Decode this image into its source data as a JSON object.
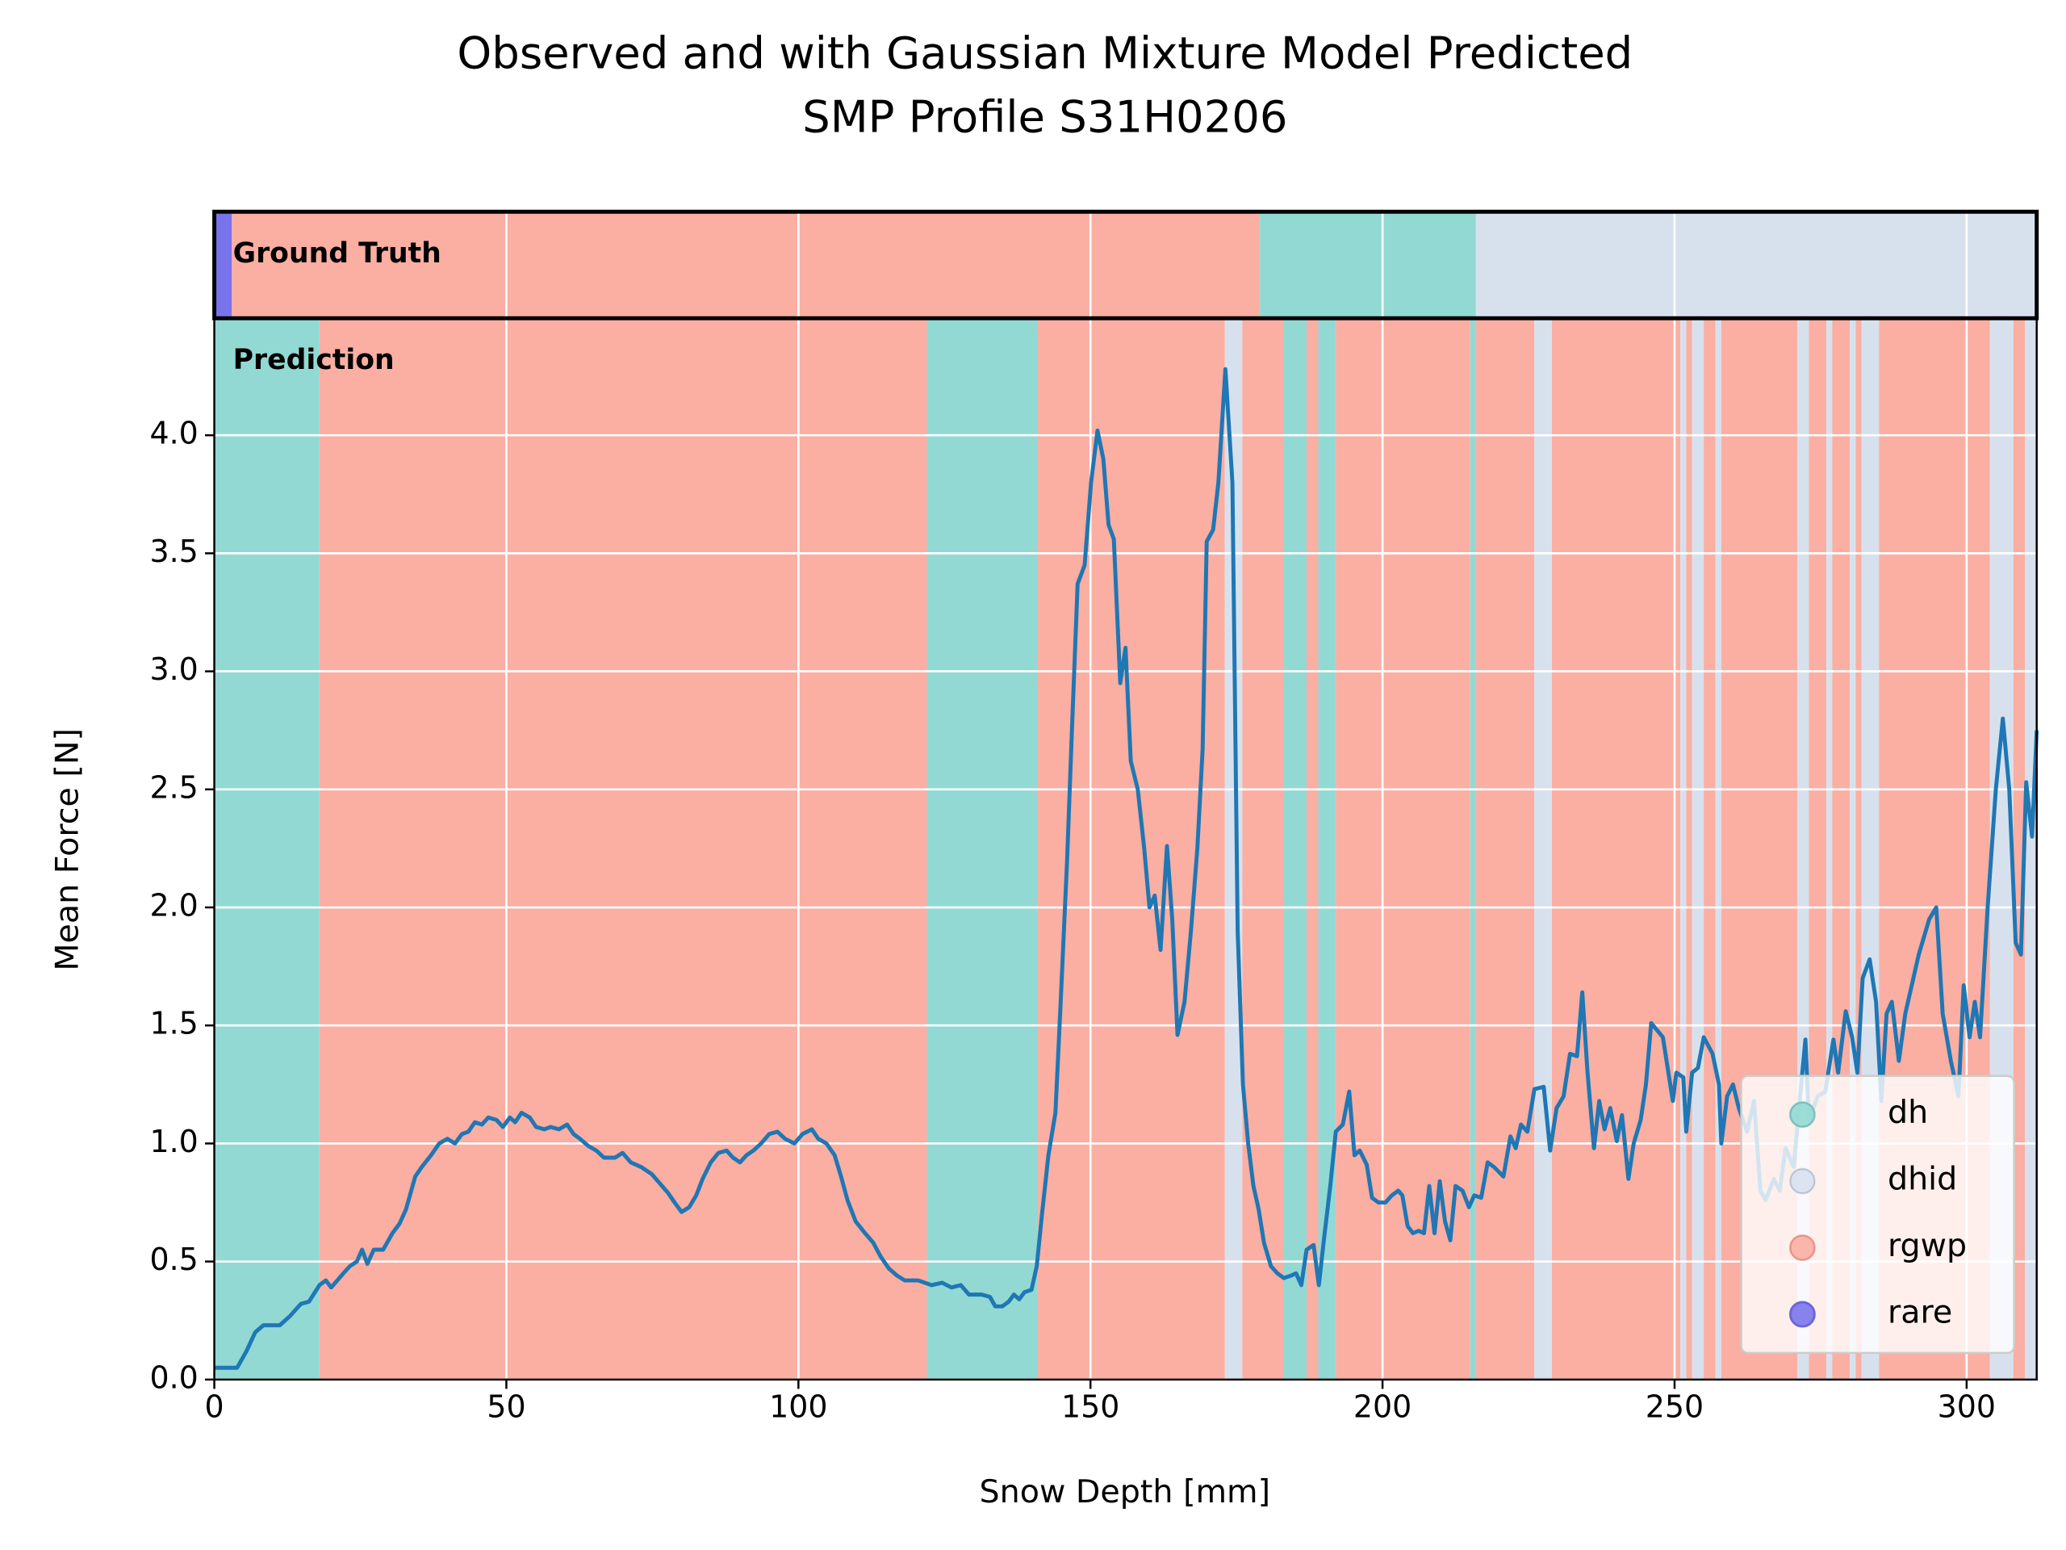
{
  "chart_data": {
    "type": "line",
    "title": [
      "Observed and with Gaussian Mixture Model Predicted",
      "SMP Profile S31H0206"
    ],
    "x_label": "Snow Depth [mm]",
    "y_label": "Mean Force [N]",
    "x": [
      0,
      3.9,
      5.5,
      7,
      8.4,
      11.2,
      13,
      14.8,
      16.2,
      18,
      19.1,
      20,
      22.1,
      23.2,
      24.4,
      25.3,
      26.2,
      27.3,
      28.9,
      30.5,
      31.7,
      32.8,
      34.4,
      35.5,
      37.1,
      38.5,
      39.9,
      41.2,
      42.4,
      43.5,
      44.6,
      45.8,
      46.9,
      48.3,
      49.4,
      50.6,
      51.5,
      52.6,
      54,
      55.1,
      56.5,
      57.6,
      59,
      60.4,
      61.5,
      62.6,
      64,
      65.4,
      66.7,
      68.6,
      69.9,
      71.3,
      73.1,
      74.9,
      76.3,
      77.7,
      78.8,
      80,
      81.3,
      82.5,
      83.6,
      85,
      86.3,
      87.7,
      88.8,
      90,
      91.1,
      92.3,
      93.6,
      95,
      96.4,
      97.7,
      99.3,
      100.7,
      102.3,
      103.4,
      104.8,
      106.2,
      107.3,
      108.4,
      109.8,
      111.4,
      112.8,
      114.1,
      115.5,
      116.9,
      118.2,
      120.5,
      122.8,
      124.6,
      126.2,
      127.8,
      129.2,
      131.4,
      132.8,
      133.7,
      134.9,
      136,
      136.9,
      137.8,
      138.7,
      139.9,
      140.8,
      141.7,
      142.8,
      144,
      144.9,
      146,
      146.9,
      147.8,
      149,
      150.1,
      151.2,
      152.2,
      153.1,
      154,
      155.1,
      156,
      156.9,
      158.1,
      159.2,
      160.1,
      161,
      162,
      163.1,
      164,
      164.9,
      166.1,
      167.2,
      168.3,
      169.2,
      169.9,
      171,
      171.9,
      173.1,
      174.3,
      175.2,
      176.1,
      177,
      177.9,
      178.8,
      179.7,
      180.9,
      182,
      183.1,
      184.3,
      185.2,
      186.1,
      187,
      188.2,
      189.1,
      190,
      191.1,
      192,
      193.2,
      194.3,
      195.2,
      196.1,
      197.3,
      198.2,
      199.3,
      200.5,
      201.6,
      202.7,
      203.4,
      204.3,
      205.2,
      206.2,
      207.1,
      208,
      208.9,
      209.8,
      210.7,
      211.6,
      212.5,
      213.7,
      214.8,
      215.7,
      216.9,
      218,
      219.1,
      220.7,
      221.9,
      222.8,
      223.7,
      224.8,
      226,
      227.6,
      228.7,
      229.8,
      231,
      232.1,
      233.3,
      234.2,
      235.1,
      236.2,
      237.1,
      238,
      239,
      240.1,
      241,
      242.1,
      243,
      244.2,
      245.1,
      246,
      248,
      249.7,
      250.3,
      251.5,
      252,
      253,
      254,
      255,
      256.5,
      257.6,
      258,
      259,
      260,
      261,
      262.4,
      263.6,
      264.7,
      265.6,
      267,
      268,
      269,
      270.4,
      271.3,
      272.4,
      273,
      274.5,
      275.8,
      277.2,
      278,
      279.3,
      280.4,
      281.3,
      282.2,
      283.4,
      284.5,
      285.4,
      286.3,
      287.2,
      288.4,
      289.5,
      290.7,
      291.8,
      293.6,
      294.8,
      295.9,
      297.3,
      298.6,
      299.5,
      300.5,
      301.4,
      302.3,
      303.6,
      305,
      306.2,
      307.3,
      308.4,
      309.3,
      310.2,
      311.2,
      312
    ],
    "series": [
      {
        "color": "#1f77b4",
        "values": [
          0.05,
          0.05,
          0.12,
          0.2,
          0.23,
          0.23,
          0.27,
          0.32,
          0.33,
          0.4,
          0.42,
          0.39,
          0.45,
          0.48,
          0.5,
          0.55,
          0.49,
          0.55,
          0.55,
          0.62,
          0.66,
          0.72,
          0.86,
          0.9,
          0.95,
          1.0,
          1.02,
          1.0,
          1.04,
          1.05,
          1.09,
          1.08,
          1.11,
          1.1,
          1.07,
          1.11,
          1.09,
          1.13,
          1.11,
          1.07,
          1.06,
          1.07,
          1.06,
          1.08,
          1.04,
          1.02,
          0.99,
          0.97,
          0.94,
          0.94,
          0.96,
          0.92,
          0.9,
          0.87,
          0.83,
          0.79,
          0.75,
          0.71,
          0.73,
          0.78,
          0.85,
          0.92,
          0.96,
          0.97,
          0.94,
          0.92,
          0.95,
          0.97,
          1.0,
          1.04,
          1.05,
          1.02,
          1.0,
          1.04,
          1.06,
          1.02,
          1.0,
          0.95,
          0.86,
          0.76,
          0.67,
          0.62,
          0.58,
          0.52,
          0.47,
          0.44,
          0.42,
          0.42,
          0.4,
          0.41,
          0.39,
          0.4,
          0.36,
          0.36,
          0.35,
          0.31,
          0.31,
          0.33,
          0.36,
          0.34,
          0.37,
          0.38,
          0.48,
          0.7,
          0.95,
          1.13,
          1.6,
          2.2,
          2.8,
          3.37,
          3.45,
          3.8,
          4.02,
          3.9,
          3.62,
          3.56,
          2.95,
          3.1,
          2.62,
          2.5,
          2.25,
          2.0,
          2.05,
          1.82,
          2.26,
          1.95,
          1.46,
          1.6,
          1.9,
          2.25,
          2.67,
          3.55,
          3.6,
          3.8,
          4.28,
          3.8,
          1.9,
          1.25,
          1.0,
          0.82,
          0.72,
          0.58,
          0.48,
          0.45,
          0.43,
          0.44,
          0.45,
          0.4,
          0.55,
          0.57,
          0.4,
          0.6,
          0.83,
          1.05,
          1.08,
          1.22,
          0.95,
          0.97,
          0.91,
          0.77,
          0.75,
          0.75,
          0.78,
          0.8,
          0.78,
          0.65,
          0.62,
          0.63,
          0.62,
          0.82,
          0.62,
          0.84,
          0.67,
          0.59,
          0.82,
          0.8,
          0.73,
          0.78,
          0.77,
          0.92,
          0.9,
          0.86,
          1.03,
          0.98,
          1.08,
          1.05,
          1.23,
          1.24,
          0.97,
          1.15,
          1.2,
          1.38,
          1.37,
          1.64,
          1.3,
          0.98,
          1.18,
          1.06,
          1.15,
          1.01,
          1.12,
          0.85,
          1.0,
          1.1,
          1.25,
          1.51,
          1.45,
          1.18,
          1.3,
          1.28,
          1.05,
          1.3,
          1.32,
          1.45,
          1.38,
          1.25,
          1.0,
          1.2,
          1.25,
          1.15,
          1.05,
          1.18,
          0.8,
          0.76,
          0.85,
          0.8,
          0.98,
          0.9,
          1.15,
          1.44,
          1.1,
          1.2,
          1.22,
          1.44,
          1.3,
          1.56,
          1.45,
          1.3,
          1.7,
          1.78,
          1.6,
          1.18,
          1.55,
          1.6,
          1.35,
          1.55,
          1.68,
          1.8,
          1.95,
          2.0,
          1.55,
          1.35,
          1.2,
          1.67,
          1.45,
          1.6,
          1.45,
          2.0,
          2.5,
          2.8,
          2.5,
          1.85,
          1.8,
          2.53,
          2.3,
          2.75
        ]
      }
    ],
    "xlim": [
      0,
      312
    ],
    "ylim": [
      0,
      4.49
    ],
    "xticks": [
      0,
      50,
      100,
      150,
      200,
      250,
      300
    ],
    "yticks": [
      {
        "value": 0,
        "label": "0.0"
      },
      0.5,
      {
        "value": 1,
        "label": "1.0"
      },
      1.5,
      {
        "value": 2,
        "label": "2.0"
      },
      2.5,
      {
        "value": 3,
        "label": "3.0"
      },
      3.5,
      {
        "value": 4,
        "label": "4.0"
      }
    ],
    "grid": true,
    "legend": "lower right",
    "classes": [
      {
        "name": "dh",
        "color": "#92d9d4"
      },
      {
        "name": "dhid",
        "color": "#d7e1ee"
      },
      {
        "name": "rgwp",
        "color": "#fbaea2"
      },
      {
        "name": "rare",
        "color": "#7a74ec"
      }
    ],
    "panels": [
      {
        "label": "Ground Truth",
        "segments": [
          {
            "start": 0,
            "end": 3,
            "class": "rare"
          },
          {
            "start": 3,
            "end": 179,
            "class": "rgwp"
          },
          {
            "start": 179,
            "end": 216,
            "class": "dh"
          },
          {
            "start": 216,
            "end": 312,
            "class": "dhid"
          }
        ]
      },
      {
        "label": "Prediction",
        "segments": [
          {
            "start": 0,
            "end": 18,
            "class": "dh"
          },
          {
            "start": 18,
            "end": 122,
            "class": "rgwp"
          },
          {
            "start": 122,
            "end": 141,
            "class": "dh"
          },
          {
            "start": 141,
            "end": 173,
            "class": "rgwp"
          },
          {
            "start": 173,
            "end": 176,
            "class": "dhid"
          },
          {
            "start": 176,
            "end": 183,
            "class": "rgwp"
          },
          {
            "start": 183,
            "end": 187,
            "class": "dh"
          },
          {
            "start": 187,
            "end": 189,
            "class": "rgwp"
          },
          {
            "start": 189,
            "end": 192,
            "class": "dh"
          },
          {
            "start": 192,
            "end": 215,
            "class": "rgwp"
          },
          {
            "start": 215,
            "end": 216,
            "class": "dh"
          },
          {
            "start": 216,
            "end": 226,
            "class": "rgwp"
          },
          {
            "start": 226,
            "end": 229,
            "class": "dhid"
          },
          {
            "start": 229,
            "end": 251,
            "class": "rgwp"
          },
          {
            "start": 251,
            "end": 252,
            "class": "dhid"
          },
          {
            "start": 252,
            "end": 253,
            "class": "rgwp"
          },
          {
            "start": 253,
            "end": 255,
            "class": "dhid"
          },
          {
            "start": 255,
            "end": 257,
            "class": "rgwp"
          },
          {
            "start": 257,
            "end": 258,
            "class": "dhid"
          },
          {
            "start": 258,
            "end": 271,
            "class": "rgwp"
          },
          {
            "start": 271,
            "end": 273,
            "class": "dhid"
          },
          {
            "start": 273,
            "end": 276,
            "class": "rgwp"
          },
          {
            "start": 276,
            "end": 277,
            "class": "dhid"
          },
          {
            "start": 277,
            "end": 280,
            "class": "rgwp"
          },
          {
            "start": 280,
            "end": 281,
            "class": "dhid"
          },
          {
            "start": 281,
            "end": 282,
            "class": "rgwp"
          },
          {
            "start": 282,
            "end": 285,
            "class": "dhid"
          },
          {
            "start": 285,
            "end": 304,
            "class": "rgwp"
          },
          {
            "start": 304,
            "end": 308,
            "class": "dhid"
          },
          {
            "start": 308,
            "end": 310,
            "class": "rgwp"
          },
          {
            "start": 310,
            "end": 312,
            "class": "dhid"
          }
        ]
      }
    ]
  }
}
